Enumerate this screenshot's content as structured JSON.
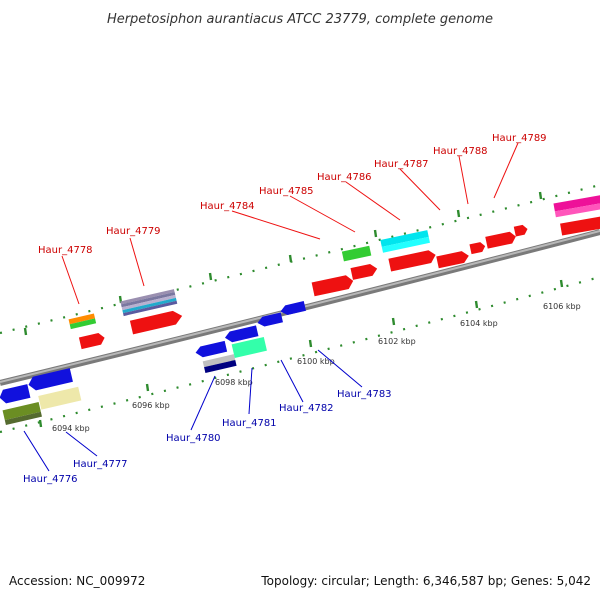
{
  "title": "Herpetosiphon aurantiacus ATCC 23779, complete genome",
  "accession": "Accession: NC_009972",
  "summary": "Topology: circular; Length: 6,346,587 bp; Genes: 5,042",
  "colors": {
    "backbone": "#8a8a8a",
    "upper_label": "#cc0000",
    "lower_label": "#0000aa",
    "tick": "#228b22",
    "forward_gene": "#ee1111",
    "reverse_gene": "#1111dd"
  },
  "scale_ticks": [
    {
      "label": "6094 kbp"
    },
    {
      "label": "6096 kbp"
    },
    {
      "label": "6098 kbp"
    },
    {
      "label": "6100 kbp"
    },
    {
      "label": "6102 kbp"
    },
    {
      "label": "6104 kbp"
    },
    {
      "label": "6106 kbp"
    }
  ],
  "upper_genes": [
    {
      "name": "Haur_4778"
    },
    {
      "name": "Haur_4779"
    },
    {
      "name": "Haur_4784"
    },
    {
      "name": "Haur_4785"
    },
    {
      "name": "Haur_4786"
    },
    {
      "name": "Haur_4787"
    },
    {
      "name": "Haur_4788"
    },
    {
      "name": "Haur_4789"
    }
  ],
  "lower_genes": [
    {
      "name": "Haur_4776"
    },
    {
      "name": "Haur_4777"
    },
    {
      "name": "Haur_4780"
    },
    {
      "name": "Haur_4781"
    },
    {
      "name": "Haur_4782"
    },
    {
      "name": "Haur_4783"
    }
  ]
}
